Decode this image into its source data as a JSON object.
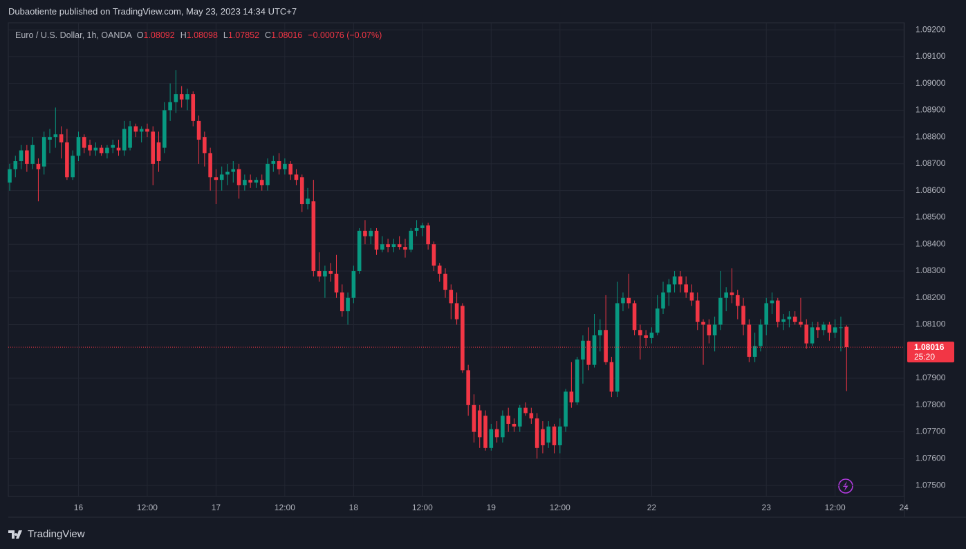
{
  "header": {
    "title": "Dubaotiente published on TradingView.com, May 23, 2023 14:34 UTC+7"
  },
  "footer": {
    "brand": "TradingView"
  },
  "chart_data": {
    "type": "candlestick",
    "symbol": "Euro / U.S. Dollar, 1h, OANDA",
    "ohlc_labels": [
      "O",
      "H",
      "L",
      "C"
    ],
    "change": "−0.00076 (−0.07%)",
    "countdown": "25:20",
    "up_color": "#089981",
    "down_color": "#f23645",
    "grid": true,
    "xlim": [
      -0.24,
      156.1
    ],
    "xticks": [
      {
        "value": 12,
        "label": "16"
      },
      {
        "value": 24,
        "label": "12:00"
      },
      {
        "value": 36,
        "label": "17"
      },
      {
        "value": 48,
        "label": "12:00"
      },
      {
        "value": 60,
        "label": "18"
      },
      {
        "value": 72,
        "label": "12:00"
      },
      {
        "value": 84,
        "label": "19"
      },
      {
        "value": 96,
        "label": "12:00"
      },
      {
        "value": 112,
        "label": "22"
      },
      {
        "value": 132,
        "label": "23"
      },
      {
        "value": 144,
        "label": "12:00"
      },
      {
        "value": 156,
        "label": "24"
      }
    ],
    "ylim": [
      1.07459,
      1.09226
    ],
    "yticks": [
      {
        "value": 1.092,
        "label": "1.09200"
      },
      {
        "value": 1.091,
        "label": "1.09100"
      },
      {
        "value": 1.09,
        "label": "1.09000"
      },
      {
        "value": 1.089,
        "label": "1.08900"
      },
      {
        "value": 1.088,
        "label": "1.08800"
      },
      {
        "value": 1.087,
        "label": "1.08700"
      },
      {
        "value": 1.086,
        "label": "1.08600"
      },
      {
        "value": 1.085,
        "label": "1.08500"
      },
      {
        "value": 1.084,
        "label": "1.08400"
      },
      {
        "value": 1.083,
        "label": "1.08300"
      },
      {
        "value": 1.082,
        "label": "1.08200"
      },
      {
        "value": 1.081,
        "label": "1.08100"
      },
      {
        "value": 1.079,
        "label": "1.07900"
      },
      {
        "value": 1.078,
        "label": "1.07800"
      },
      {
        "value": 1.077,
        "label": "1.07700"
      },
      {
        "value": 1.076,
        "label": "1.07600"
      },
      {
        "value": 1.075,
        "label": "1.07500"
      }
    ],
    "candles": [
      [
        1.0863,
        1.087,
        1.086,
        1.0868
      ],
      [
        1.0868,
        1.0873,
        1.0865,
        1.0871
      ],
      [
        1.0871,
        1.0877,
        1.0868,
        1.0875
      ],
      [
        1.0875,
        1.0877,
        1.0867,
        1.087
      ],
      [
        1.087,
        1.088,
        1.0868,
        1.0877
      ],
      [
        1.087,
        1.0872,
        1.0856,
        1.0868
      ],
      [
        1.0869,
        1.0882,
        1.0866,
        1.088
      ],
      [
        1.0879,
        1.0883,
        1.0874,
        1.088
      ],
      [
        1.088,
        1.0891,
        1.0876,
        1.0881
      ],
      [
        1.0881,
        1.0884,
        1.0872,
        1.0878
      ],
      [
        1.0878,
        1.0883,
        1.0864,
        1.0865
      ],
      [
        1.0865,
        1.0875,
        1.0864,
        1.0873
      ],
      [
        1.0873,
        1.0882,
        1.0871,
        1.088
      ],
      [
        1.088,
        1.0881,
        1.0874,
        1.0876
      ],
      [
        1.0877,
        1.0879,
        1.0873,
        1.0875
      ],
      [
        1.0875,
        1.0878,
        1.0873,
        1.0876
      ],
      [
        1.0876,
        1.0877,
        1.0873,
        1.0874
      ],
      [
        1.0874,
        1.0877,
        1.0872,
        1.0876
      ],
      [
        1.0876,
        1.0879,
        1.0874,
        1.0877
      ],
      [
        1.0876,
        1.0879,
        1.0873,
        1.0875
      ],
      [
        1.0875,
        1.0886,
        1.0873,
        1.0883
      ],
      [
        1.0876,
        1.0886,
        1.0875,
        1.0884
      ],
      [
        1.0884,
        1.0885,
        1.088,
        1.0882
      ],
      [
        1.0882,
        1.0884,
        1.0878,
        1.0883
      ],
      [
        1.0883,
        1.0885,
        1.088,
        1.0882
      ],
      [
        1.0882,
        1.0884,
        1.0862,
        1.087
      ],
      [
        1.0878,
        1.0882,
        1.0867,
        1.0871
      ],
      [
        1.0876,
        1.0893,
        1.0874,
        1.089
      ],
      [
        1.089,
        1.09,
        1.0886,
        1.0893
      ],
      [
        1.0893,
        1.0905,
        1.0889,
        1.0896
      ],
      [
        1.0896,
        1.0899,
        1.0891,
        1.0894
      ],
      [
        1.0894,
        1.0898,
        1.089,
        1.0896
      ],
      [
        1.0896,
        1.0897,
        1.0884,
        1.0886
      ],
      [
        1.0886,
        1.0888,
        1.087,
        1.0879
      ],
      [
        1.088,
        1.0882,
        1.0869,
        1.0874
      ],
      [
        1.0874,
        1.0876,
        1.086,
        1.0865
      ],
      [
        1.0865,
        1.0868,
        1.0855,
        1.0864
      ],
      [
        1.0864,
        1.0869,
        1.086,
        1.0866
      ],
      [
        1.0866,
        1.087,
        1.0862,
        1.0867
      ],
      [
        1.0867,
        1.0871,
        1.0863,
        1.0868
      ],
      [
        1.0868,
        1.087,
        1.0857,
        1.0862
      ],
      [
        1.0862,
        1.0866,
        1.086,
        1.0864
      ],
      [
        1.0864,
        1.0866,
        1.0861,
        1.0863
      ],
      [
        1.0863,
        1.0865,
        1.0861,
        1.0864
      ],
      [
        1.0864,
        1.0866,
        1.086,
        1.0862
      ],
      [
        1.0862,
        1.0872,
        1.086,
        1.087
      ],
      [
        1.087,
        1.0873,
        1.0867,
        1.0871
      ],
      [
        1.0871,
        1.0874,
        1.0866,
        1.0868
      ],
      [
        1.0868,
        1.0872,
        1.0866,
        1.087
      ],
      [
        1.087,
        1.0871,
        1.0864,
        1.0866
      ],
      [
        1.0866,
        1.0868,
        1.0862,
        1.0864
      ],
      [
        1.0865,
        1.0866,
        1.0852,
        1.0855
      ],
      [
        1.0855,
        1.0861,
        1.0853,
        1.0857
      ],
      [
        1.0856,
        1.0864,
        1.0828,
        1.083
      ],
      [
        1.083,
        1.0837,
        1.0826,
        1.0828
      ],
      [
        1.0828,
        1.0832,
        1.082,
        1.083
      ],
      [
        1.083,
        1.0833,
        1.0826,
        1.0829
      ],
      [
        1.0829,
        1.0836,
        1.082,
        1.0822
      ],
      [
        1.0822,
        1.0825,
        1.0813,
        1.0815
      ],
      [
        1.0815,
        1.0822,
        1.081,
        1.082
      ],
      [
        1.082,
        1.0832,
        1.0818,
        1.083
      ],
      [
        1.083,
        1.0846,
        1.0829,
        1.0845
      ],
      [
        1.0845,
        1.0849,
        1.084,
        1.0843
      ],
      [
        1.0843,
        1.0846,
        1.084,
        1.0845
      ],
      [
        1.0845,
        1.0846,
        1.0836,
        1.0838
      ],
      [
        1.0838,
        1.0843,
        1.0837,
        1.084
      ],
      [
        1.084,
        1.0842,
        1.0837,
        1.0839
      ],
      [
        1.0839,
        1.0842,
        1.0837,
        1.084
      ],
      [
        1.084,
        1.0843,
        1.0838,
        1.0839
      ],
      [
        1.0839,
        1.0842,
        1.0835,
        1.0838
      ],
      [
        1.0838,
        1.0846,
        1.0837,
        1.0845
      ],
      [
        1.0845,
        1.0849,
        1.0843,
        1.0846
      ],
      [
        1.0846,
        1.0848,
        1.0843,
        1.0847
      ],
      [
        1.0847,
        1.0848,
        1.0838,
        1.084
      ],
      [
        1.084,
        1.0841,
        1.083,
        1.0832
      ],
      [
        1.0832,
        1.0833,
        1.0826,
        1.0829
      ],
      [
        1.0829,
        1.0831,
        1.082,
        1.0823
      ],
      [
        1.0823,
        1.0825,
        1.0812,
        1.0818
      ],
      [
        1.0818,
        1.0822,
        1.081,
        1.0812
      ],
      [
        1.0817,
        1.0818,
        1.0792,
        1.0793
      ],
      [
        1.0793,
        1.0795,
        1.0776,
        1.078
      ],
      [
        1.078,
        1.0784,
        1.0766,
        1.077
      ],
      [
        1.0778,
        1.078,
        1.0764,
        1.0768
      ],
      [
        1.0776,
        1.0778,
        1.0763,
        1.0764
      ],
      [
        1.0764,
        1.0773,
        1.0763,
        1.0771
      ],
      [
        1.0771,
        1.0774,
        1.0766,
        1.0768
      ],
      [
        1.0768,
        1.0778,
        1.0766,
        1.0776
      ],
      [
        1.0776,
        1.0779,
        1.077,
        1.0773
      ],
      [
        1.0773,
        1.0775,
        1.077,
        1.0772
      ],
      [
        1.0772,
        1.078,
        1.077,
        1.0779
      ],
      [
        1.0779,
        1.0781,
        1.0776,
        1.0777
      ],
      [
        1.0777,
        1.0779,
        1.0773,
        1.0775
      ],
      [
        1.0775,
        1.0777,
        1.076,
        1.0764
      ],
      [
        1.0771,
        1.0774,
        1.0762,
        1.0765
      ],
      [
        1.0766,
        1.0774,
        1.0764,
        1.0772
      ],
      [
        1.0772,
        1.0773,
        1.0762,
        1.0765
      ],
      [
        1.0765,
        1.0775,
        1.0762,
        1.0772
      ],
      [
        1.0772,
        1.0786,
        1.077,
        1.0785
      ],
      [
        1.0785,
        1.0796,
        1.0779,
        1.0781
      ],
      [
        1.0781,
        1.0798,
        1.078,
        1.0797
      ],
      [
        1.0797,
        1.0806,
        1.0788,
        1.0804
      ],
      [
        1.0804,
        1.0809,
        1.0793,
        1.0795
      ],
      [
        1.0795,
        1.0814,
        1.0794,
        1.0806
      ],
      [
        1.0806,
        1.0812,
        1.08,
        1.0808
      ],
      [
        1.0808,
        1.0821,
        1.0795,
        1.0796
      ],
      [
        1.0796,
        1.0798,
        1.0783,
        1.0785
      ],
      [
        1.0785,
        1.0826,
        1.0783,
        1.0818
      ],
      [
        1.0818,
        1.0822,
        1.0815,
        1.082
      ],
      [
        1.082,
        1.0829,
        1.0816,
        1.0818
      ],
      [
        1.0818,
        1.0819,
        1.0806,
        1.0808
      ],
      [
        1.0808,
        1.081,
        1.0797,
        1.0806
      ],
      [
        1.0806,
        1.0808,
        1.0802,
        1.0805
      ],
      [
        1.0805,
        1.0809,
        1.0803,
        1.0807
      ],
      [
        1.0807,
        1.0821,
        1.0806,
        1.0816
      ],
      [
        1.0816,
        1.0826,
        1.0814,
        1.0822
      ],
      [
        1.0822,
        1.0827,
        1.0817,
        1.0825
      ],
      [
        1.0825,
        1.083,
        1.0822,
        1.0828
      ],
      [
        1.0828,
        1.083,
        1.0822,
        1.0825
      ],
      [
        1.0825,
        1.0828,
        1.082,
        1.0822
      ],
      [
        1.0822,
        1.0825,
        1.0817,
        1.0819
      ],
      [
        1.0819,
        1.0822,
        1.0808,
        1.0811
      ],
      [
        1.0811,
        1.0812,
        1.0795,
        1.081
      ],
      [
        1.081,
        1.0812,
        1.0803,
        1.0806
      ],
      [
        1.0806,
        1.0813,
        1.08,
        1.081
      ],
      [
        1.081,
        1.083,
        1.0808,
        1.082
      ],
      [
        1.082,
        1.0824,
        1.0815,
        1.0822
      ],
      [
        1.0822,
        1.0831,
        1.0818,
        1.0821
      ],
      [
        1.0821,
        1.0823,
        1.0812,
        1.0817
      ],
      [
        1.0817,
        1.082,
        1.0806,
        1.081
      ],
      [
        1.081,
        1.0812,
        1.0796,
        1.0798
      ],
      [
        1.0798,
        1.0807,
        1.0796,
        1.0802
      ],
      [
        1.0802,
        1.0812,
        1.08,
        1.081
      ],
      [
        1.081,
        1.082,
        1.0806,
        1.0818
      ],
      [
        1.0818,
        1.0822,
        1.0814,
        1.0819
      ],
      [
        1.0819,
        1.082,
        1.0809,
        1.0811
      ],
      [
        1.0811,
        1.0814,
        1.0808,
        1.0812
      ],
      [
        1.0812,
        1.0815,
        1.0809,
        1.0813
      ],
      [
        1.0813,
        1.0815,
        1.081,
        1.0811
      ],
      [
        1.0811,
        1.082,
        1.0809,
        1.081
      ],
      [
        1.081,
        1.0812,
        1.0801,
        1.0803
      ],
      [
        1.0803,
        1.0811,
        1.0802,
        1.0809
      ],
      [
        1.0809,
        1.0811,
        1.0805,
        1.0808
      ],
      [
        1.0808,
        1.0811,
        1.0806,
        1.081
      ],
      [
        1.081,
        1.0811,
        1.0804,
        1.0807
      ],
      [
        1.0807,
        1.0812,
        1.0805,
        1.0809
      ],
      [
        1.0809,
        1.0813,
        1.08,
        1.0809
      ],
      [
        1.08092,
        1.08098,
        1.07852,
        1.08016
      ]
    ]
  }
}
